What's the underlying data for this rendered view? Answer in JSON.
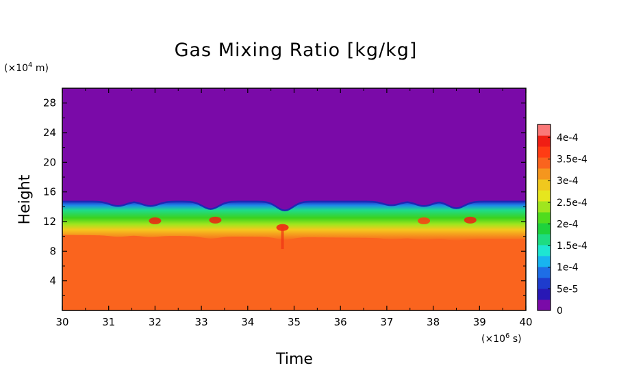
{
  "chart_data": {
    "type": "heatmap",
    "title": "Gas Mixing Ratio [kg/kg]",
    "xlabel": "Time",
    "ylabel": "Height",
    "x_unit": "(×10",
    "x_unit_exp": "6",
    "x_unit_tail": " s)",
    "y_unit": "(×10",
    "y_unit_exp": "4",
    "y_unit_tail": " m)",
    "xlim": [
      30,
      40
    ],
    "ylim": [
      0,
      30
    ],
    "x_ticks": [
      "30",
      "31",
      "32",
      "33",
      "34",
      "35",
      "36",
      "37",
      "38",
      "39",
      "40"
    ],
    "y_ticks": [
      "4",
      "8",
      "12",
      "16",
      "20",
      "24",
      "28"
    ],
    "colorbar": {
      "ticks": [
        "0",
        "5e-5",
        "1e-4",
        "1.5e-4",
        "2e-4",
        "2.5e-4",
        "3e-4",
        "3.5e-4",
        "4e-4"
      ],
      "min": 0,
      "max": 0.00043,
      "colors": [
        "#7a0aa8",
        "#2818b5",
        "#1e3ccd",
        "#1e6ee6",
        "#18b4f0",
        "#1ee6d2",
        "#1edc82",
        "#1ed23c",
        "#50dc1e",
        "#a0e61e",
        "#e6e61e",
        "#f0c81e",
        "#f5961e",
        "#fa641e",
        "#ff3c14",
        "#f01e14",
        "#fa7878"
      ]
    },
    "regions": {
      "lower_value": 0.00035,
      "upper_value": 0,
      "transition_top_height": 14.7,
      "transition_band": [
        {
          "height": 14.5,
          "value": 5e-05
        },
        {
          "height": 14.0,
          "value": 0.00017
        },
        {
          "height": 13.2,
          "value": 0.00021
        },
        {
          "height": 12.5,
          "value": 0.00025
        },
        {
          "height": 11.8,
          "value": 0.0003
        },
        {
          "height": 11.0,
          "value": 0.00033
        }
      ],
      "dips": [
        {
          "time": 31.2,
          "depth": 0.6
        },
        {
          "time": 31.9,
          "depth": 0.6
        },
        {
          "time": 33.2,
          "depth": 1.0
        },
        {
          "time": 34.8,
          "depth": 1.2
        },
        {
          "time": 37.1,
          "depth": 0.5
        },
        {
          "time": 37.8,
          "depth": 0.6
        },
        {
          "time": 38.5,
          "depth": 0.9
        }
      ],
      "hotspots": [
        {
          "time": 32.0,
          "height": 12.1,
          "value": 0.00038
        },
        {
          "time": 33.3,
          "height": 12.2,
          "value": 0.00038
        },
        {
          "time": 34.75,
          "height": 11.2,
          "value": 0.0004
        },
        {
          "time": 37.8,
          "height": 12.1,
          "value": 0.00037
        },
        {
          "time": 38.8,
          "height": 12.2,
          "value": 0.00038
        }
      ]
    }
  }
}
